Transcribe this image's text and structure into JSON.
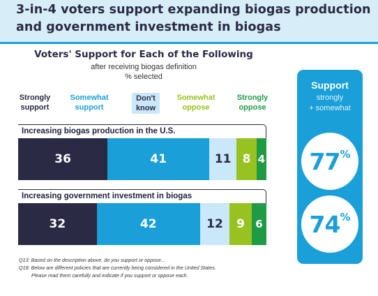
{
  "header": {
    "title_line1": "3-in-4 voters support expanding biogas production",
    "title_line2": "and government investment in biogas"
  },
  "chart_data": {
    "type": "bar",
    "orientation": "horizontal-stacked",
    "title": "Voters' Support for Each of the Following",
    "subtitle": "after receiving biogas definition",
    "unit_note": "% selected",
    "categories": [
      "Increasing biogas production in the U.S.",
      "Increasing government investment in biogas"
    ],
    "series": [
      {
        "name": "Strongly support",
        "color": "#2a2a45",
        "text_color": "#ffffff",
        "values": [
          36,
          32
        ]
      },
      {
        "name": "Somewhat support",
        "color": "#1a9fd9",
        "text_color": "#ffffff",
        "values": [
          41,
          42
        ]
      },
      {
        "name": "Don't know",
        "color": "#c9e8f9",
        "text_color": "#2a2a45",
        "values": [
          11,
          12
        ]
      },
      {
        "name": "Somewhat oppose",
        "color": "#98c21f",
        "text_color": "#ffffff",
        "values": [
          8,
          9
        ]
      },
      {
        "name": "Strongly oppose",
        "color": "#1f9a45",
        "text_color": "#ffffff",
        "values": [
          4,
          6
        ]
      }
    ],
    "legend_placement": "top",
    "legend": [
      {
        "line1": "Strongly",
        "line2": "support",
        "color": "#2a2a45"
      },
      {
        "line1": "Somewhat",
        "line2": "support",
        "color": "#1a9fd9"
      },
      {
        "line1": "Don't",
        "line2": "know",
        "color": "#2a2a45",
        "highlight": true
      },
      {
        "line1": "Somewhat",
        "line2": "oppose",
        "color": "#98c21f"
      },
      {
        "line1": "Strongly",
        "line2": "oppose",
        "color": "#1f9a45"
      }
    ]
  },
  "summary": {
    "title": "Support",
    "sub1": "strongly",
    "sub2": "+ somewhat",
    "values": [
      "77",
      "74"
    ],
    "suffix": "%"
  },
  "footnotes": [
    "Q13: Based on the description above, do you support or oppose...",
    "Q18: Below are different policies that are currently being considered in the United States.",
    "Please read them carefully and indicate if you support or oppose each."
  ]
}
